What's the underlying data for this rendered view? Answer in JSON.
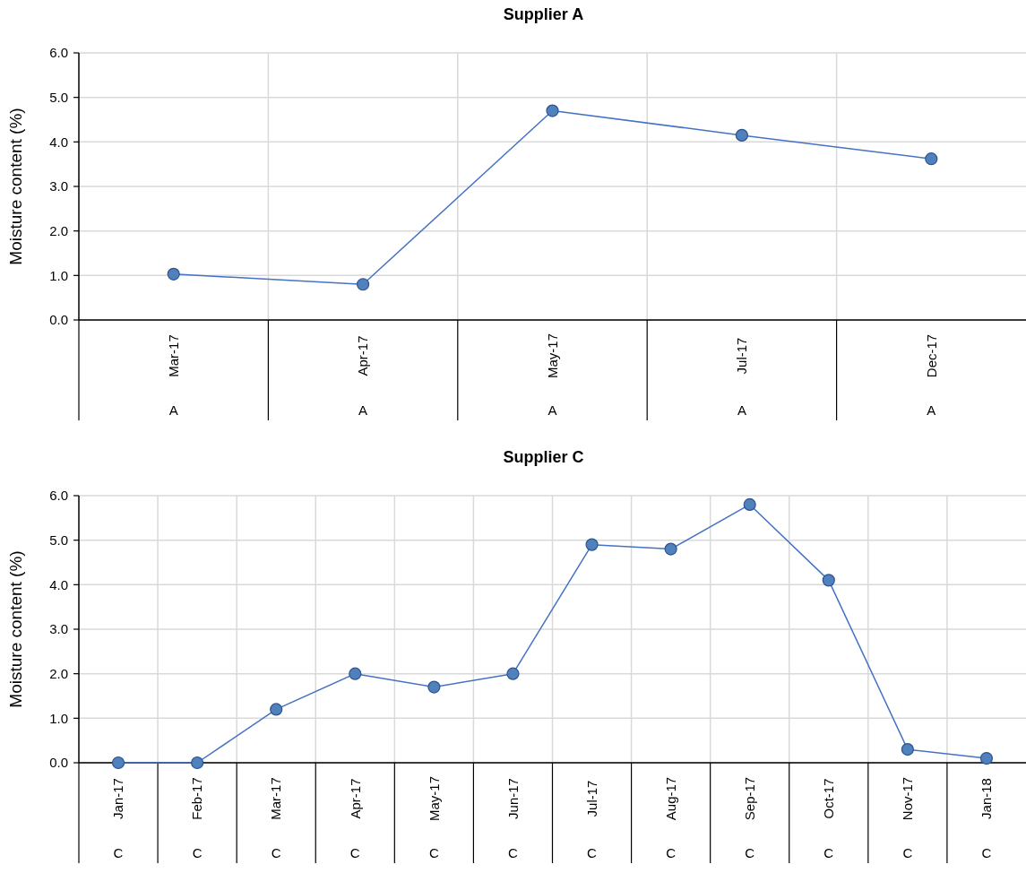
{
  "chart_data": [
    {
      "type": "line",
      "title": "Supplier A",
      "ylabel": "Moisture content (%)",
      "categories": [
        "Mar-17",
        "Apr-17",
        "May-17",
        "Jul-17",
        "Dec-17"
      ],
      "series": [
        {
          "color": "#4472c4",
          "values": [
            1.03,
            0.8,
            4.7,
            4.15,
            3.62
          ]
        }
      ],
      "ylim": [
        0,
        6
      ],
      "yticks": [
        {
          "value": 0,
          "label": "0.0"
        },
        {
          "value": 1,
          "label": "1.0"
        },
        {
          "value": 2,
          "label": "2.0"
        },
        {
          "value": 3,
          "label": "3.0"
        },
        {
          "value": 4,
          "label": "4.0"
        },
        {
          "value": 5,
          "label": "5.0"
        },
        {
          "value": 6,
          "label": "6.0"
        }
      ],
      "grid": true,
      "marker": "circle",
      "annotations": [
        "A",
        "A",
        "A",
        "A",
        "A"
      ]
    },
    {
      "type": "line",
      "title": "Supplier C",
      "ylabel": "Moisture content (%)",
      "categories": [
        "Jan-17",
        "Feb-17",
        "Mar-17",
        "Apr-17",
        "May-17",
        "Jun-17",
        "Jul-17",
        "Aug-17",
        "Sep-17",
        "Oct-17",
        "Nov-17",
        "Jan-18"
      ],
      "series": [
        {
          "color": "#4472c4",
          "values": [
            0,
            0,
            1.2,
            2.0,
            1.7,
            2.0,
            4.9,
            4.8,
            5.8,
            4.1,
            0.3,
            0.1
          ]
        }
      ],
      "ylim": [
        0,
        6
      ],
      "yticks": [
        {
          "value": 0,
          "label": "0.0"
        },
        {
          "value": 1,
          "label": "1.0"
        },
        {
          "value": 2,
          "label": "2.0"
        },
        {
          "value": 3,
          "label": "3.0"
        },
        {
          "value": 4,
          "label": "4.0"
        },
        {
          "value": 5,
          "label": "5.0"
        },
        {
          "value": 6,
          "label": "6.0"
        }
      ],
      "grid": true,
      "marker": "circle",
      "annotations": [
        "C",
        "C",
        "C",
        "C",
        "C",
        "C",
        "C",
        "C",
        "C",
        "C",
        "C",
        "C"
      ]
    }
  ]
}
